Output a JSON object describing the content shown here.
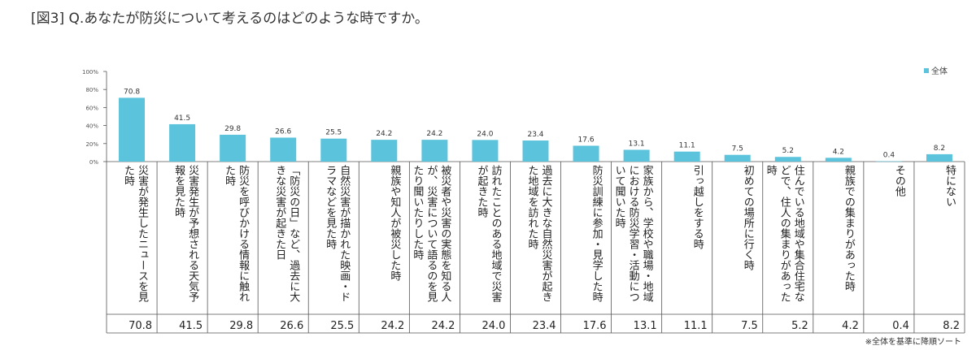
{
  "title": "[図3] Q.あなたが防災について考えるのはどのような時ですか。",
  "note": "※全体を基準に降順ソート",
  "colors": {
    "bar": "#5bc4dc",
    "axis": "#555555",
    "grid": "#dddddd"
  },
  "chart_data": {
    "type": "bar",
    "legend": {
      "entries": [
        "全体"
      ],
      "position": "top-right"
    },
    "ylim": [
      0,
      100
    ],
    "yticks": [
      "0%",
      "20%",
      "40%",
      "60%",
      "80%",
      "100%"
    ],
    "categories": [
      "災害が発生したニュースを見た時",
      "災害発生が予想される天気予報を見た時",
      "防災を呼びかける情報に触れた時",
      "「防災の日」など、過去に大きな災害が起きた日",
      "自然災害が描かれた映画・ドラマなどを見た時",
      "親族や知人が被災した時",
      "被災者や災害の実態を知る人が、災害について語るのを見たり聞いたりした時",
      "訪れたことのある地域で災害が起きた時",
      "過去に大きな自然災害が起きた地域を訪れた時",
      "防災訓練に参加・見学した時",
      "家族から、学校や職場・地域における防災学習・活動について聞いた時",
      "引っ越しをする時",
      "初めての場所に行く時",
      "住んでいる地域や集合住宅などで、住人の集まりがあった時",
      "親族での集まりがあった時",
      "その他",
      "特にない"
    ],
    "series": [
      {
        "name": "全体",
        "values": [
          70.8,
          41.5,
          29.8,
          26.6,
          25.5,
          24.2,
          24.2,
          24.0,
          23.4,
          17.6,
          13.1,
          11.1,
          7.5,
          5.2,
          4.2,
          0.4,
          8.2
        ],
        "labels": [
          "70.8",
          "41.5",
          "29.8",
          "26.6",
          "25.5",
          "24.2",
          "24.2",
          "24.0",
          "23.4",
          "17.6",
          "13.1",
          "11.1",
          "7.5",
          "5.2",
          "4.2",
          "0.4",
          "8.2"
        ]
      }
    ]
  }
}
